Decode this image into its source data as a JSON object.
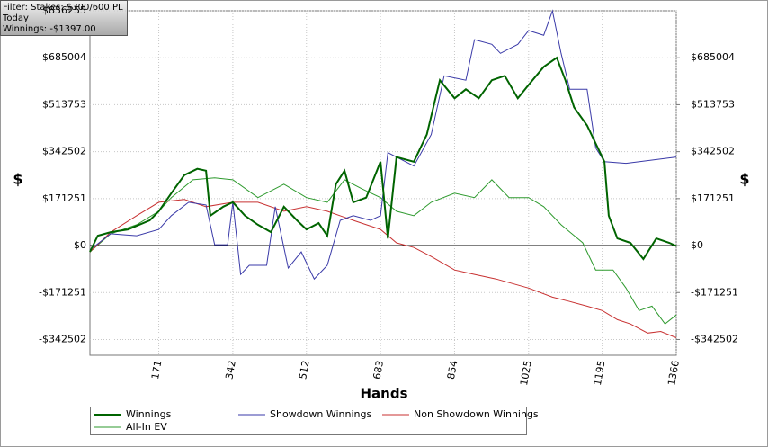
{
  "chart_data": {
    "type": "line",
    "annotations": [
      "Filter: Stakes: $300/600 PL",
      "Today",
      "Winnings: -$1397.00"
    ],
    "x_label": "Hands",
    "y_label": "$",
    "y2_label": "$",
    "xlim": [
      12,
      1366
    ],
    "xticks": [
      171,
      342,
      512,
      683,
      854,
      1025,
      1195,
      1366
    ],
    "ylim": [
      -400000,
      856255
    ],
    "yticks": [
      {
        "value": -342502,
        "label": "-$342502"
      },
      {
        "value": -171251,
        "label": "-$171251"
      },
      {
        "value": 0,
        "label": "$0"
      },
      {
        "value": 171251,
        "label": "$171251"
      },
      {
        "value": 342502,
        "label": "$342502"
      },
      {
        "value": 513753,
        "label": "$513753"
      },
      {
        "value": 685004,
        "label": "$685004"
      },
      {
        "value": 856255,
        "label": "$856255"
      }
    ],
    "y2lim": [
      -400000,
      856255
    ],
    "y2ticks": [
      {
        "value": -342502,
        "label": "-$342502"
      },
      {
        "value": -171251,
        "label": "-$171251"
      },
      {
        "value": 0,
        "label": "$0"
      },
      {
        "value": 171251,
        "label": "$171251"
      },
      {
        "value": 342502,
        "label": "$342502"
      },
      {
        "value": 513753,
        "label": "$513753"
      },
      {
        "value": 685004,
        "label": "$685004"
      }
    ],
    "grid": true,
    "legend": "bottom",
    "series": [
      {
        "name": "Winnings",
        "color": "#006400",
        "x": [
          12,
          30,
          60,
          100,
          150,
          171,
          200,
          230,
          260,
          280,
          290,
          320,
          342,
          370,
          400,
          430,
          460,
          490,
          512,
          540,
          560,
          580,
          600,
          620,
          650,
          683,
          700,
          720,
          760,
          790,
          820,
          854,
          880,
          910,
          940,
          970,
          1000,
          1025,
          1060,
          1090,
          1110,
          1130,
          1160,
          1180,
          1200,
          1210,
          1230,
          1260,
          1290,
          1320,
          1350,
          1366
        ],
        "values": [
          -23000,
          36000,
          49000,
          59000,
          92000,
          125000,
          191000,
          257000,
          280000,
          273000,
          109000,
          142000,
          158000,
          109000,
          76000,
          49000,
          142000,
          92000,
          59000,
          82000,
          36000,
          224000,
          273000,
          158000,
          175000,
          306000,
          26000,
          323000,
          306000,
          405000,
          603000,
          537000,
          570000,
          537000,
          603000,
          619000,
          537000,
          586000,
          652000,
          685000,
          603000,
          504000,
          438000,
          372000,
          306000,
          109000,
          26000,
          10000,
          -49000,
          26000,
          10000,
          -1397
        ]
      },
      {
        "name": "Showdown Winnings",
        "color": "#3a3aa8",
        "x": [
          12,
          60,
          120,
          171,
          200,
          240,
          280,
          300,
          330,
          342,
          360,
          380,
          420,
          440,
          470,
          500,
          530,
          560,
          590,
          620,
          660,
          683,
          700,
          760,
          800,
          830,
          880,
          900,
          940,
          960,
          1000,
          1025,
          1060,
          1080,
          1100,
          1120,
          1160,
          1180,
          1200,
          1250,
          1366
        ],
        "values": [
          -16000,
          43000,
          36000,
          59000,
          109000,
          158000,
          148000,
          3000,
          3000,
          158000,
          -105000,
          -72000,
          -72000,
          142000,
          -82000,
          -23000,
          -122000,
          -72000,
          92000,
          109000,
          92000,
          109000,
          339000,
          290000,
          405000,
          619000,
          603000,
          751000,
          734000,
          701000,
          734000,
          784000,
          767000,
          856000,
          701000,
          570000,
          570000,
          356000,
          306000,
          300000,
          323000
        ]
      },
      {
        "name": "Non Showdown Winnings",
        "color": "#c83232",
        "x": [
          12,
          60,
          120,
          171,
          230,
          280,
          342,
          400,
          460,
          512,
          560,
          620,
          683,
          720,
          760,
          800,
          854,
          900,
          950,
          1025,
          1080,
          1120,
          1160,
          1195,
          1230,
          1260,
          1300,
          1330,
          1366
        ],
        "values": [
          -23000,
          49000,
          109000,
          158000,
          168000,
          142000,
          158000,
          158000,
          125000,
          142000,
          125000,
          92000,
          59000,
          10000,
          -7000,
          -40000,
          -89000,
          -105000,
          -122000,
          -155000,
          -188000,
          -204000,
          -221000,
          -237000,
          -270000,
          -286000,
          -319000,
          -313000,
          -336000
        ]
      },
      {
        "name": "All-In EV",
        "color": "#2e9a2e",
        "x": [
          12,
          60,
          120,
          171,
          200,
          250,
          300,
          342,
          400,
          460,
          512,
          560,
          600,
          640,
          683,
          720,
          760,
          800,
          854,
          900,
          940,
          980,
          1025,
          1060,
          1100,
          1150,
          1180,
          1220,
          1250,
          1280,
          1310,
          1340,
          1366
        ],
        "values": [
          -23000,
          43000,
          76000,
          125000,
          175000,
          240000,
          247000,
          240000,
          175000,
          224000,
          175000,
          158000,
          240000,
          207000,
          175000,
          125000,
          109000,
          158000,
          191000,
          175000,
          240000,
          175000,
          175000,
          142000,
          76000,
          10000,
          -89000,
          -89000,
          -155000,
          -237000,
          -221000,
          -286000,
          -253000
        ]
      }
    ]
  }
}
